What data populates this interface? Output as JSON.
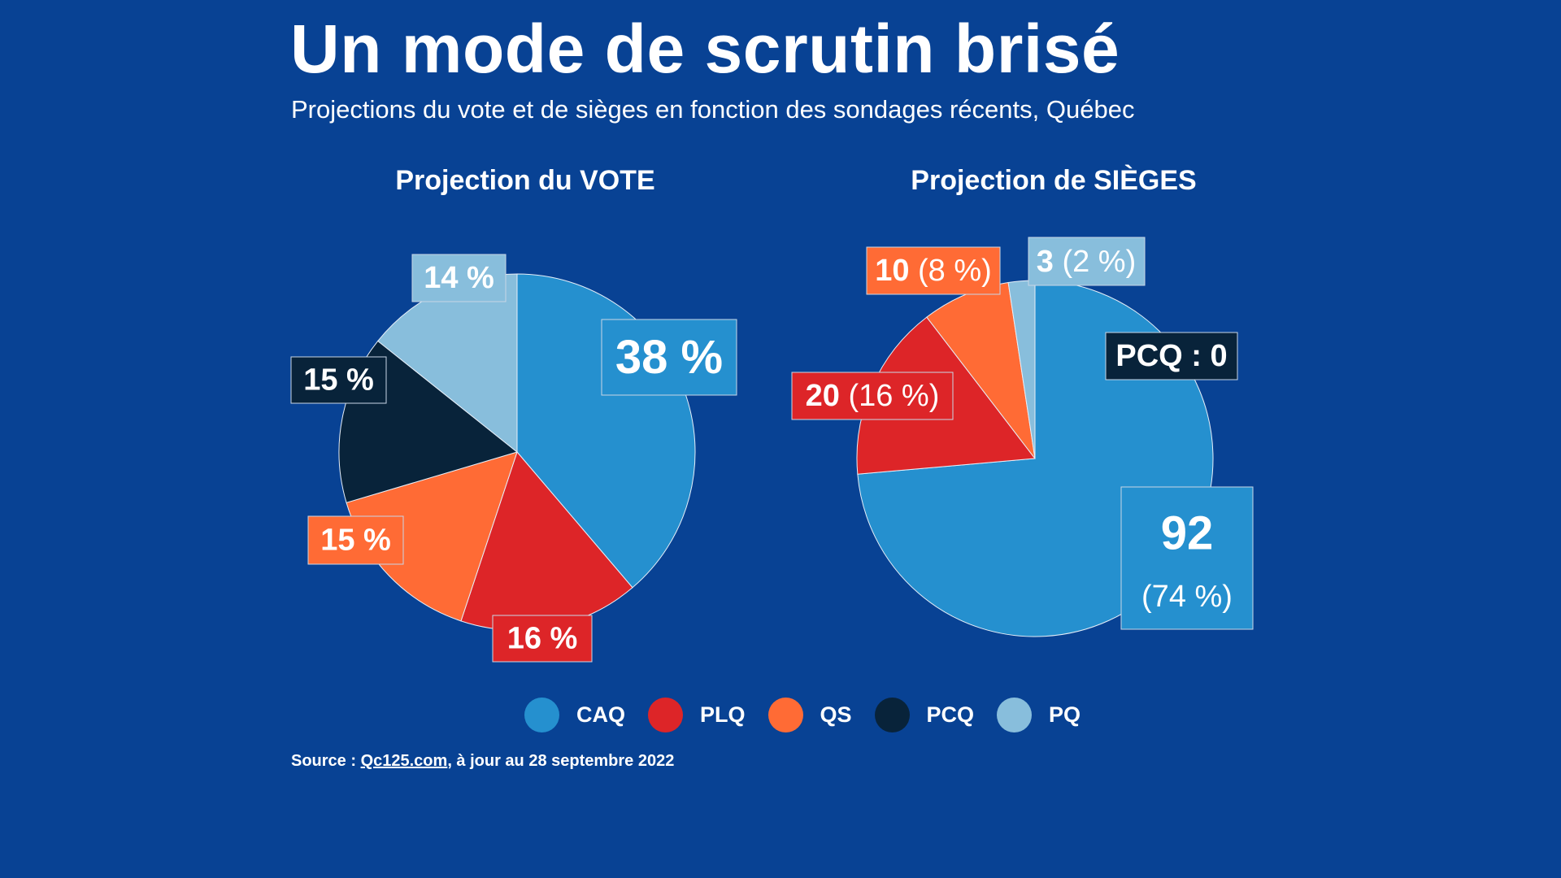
{
  "header": {
    "title": "Un mode de scrutin brisé",
    "subtitle": "Projections du vote et de sièges en fonction des sondages récents, Québec"
  },
  "colors": {
    "background": "#084294",
    "CAQ": "#2590cf",
    "PLQ": "#dd2528",
    "QS": "#ff6b35",
    "PCQ": "#08233a",
    "PQ": "#88bedc"
  },
  "legend": [
    {
      "party": "CAQ",
      "label": "CAQ"
    },
    {
      "party": "PLQ",
      "label": "PLQ"
    },
    {
      "party": "QS",
      "label": "QS"
    },
    {
      "party": "PCQ",
      "label": "PCQ"
    },
    {
      "party": "PQ",
      "label": "PQ"
    }
  ],
  "source": {
    "prefix": "Source : ",
    "link": "Qc125.com",
    "suffix": ", à jour au 28 septembre 2022"
  },
  "chart_data": [
    {
      "type": "pie",
      "title": "Projection du VOTE",
      "unit": "%",
      "slices": [
        {
          "party": "CAQ",
          "value": 38,
          "label": "38 %"
        },
        {
          "party": "PLQ",
          "value": 16,
          "label": "16 %"
        },
        {
          "party": "QS",
          "value": 15,
          "label": "15 %"
        },
        {
          "party": "PCQ",
          "value": 15,
          "label": "15 %"
        },
        {
          "party": "PQ",
          "value": 14,
          "label": "14 %"
        }
      ]
    },
    {
      "type": "pie",
      "title": "Projection de SIÈGES",
      "unit": "seats",
      "slices": [
        {
          "party": "CAQ",
          "value": 92,
          "label": "92",
          "sublabel": "(74 %)"
        },
        {
          "party": "PLQ",
          "value": 20,
          "label": "20",
          "sublabel": "(16 %)"
        },
        {
          "party": "QS",
          "value": 10,
          "label": "10",
          "sublabel": "(8 %)"
        },
        {
          "party": "PCQ",
          "value": 0,
          "label": "PCQ : 0"
        },
        {
          "party": "PQ",
          "value": 3,
          "label": "3",
          "sublabel": "(2 %)"
        }
      ]
    }
  ]
}
